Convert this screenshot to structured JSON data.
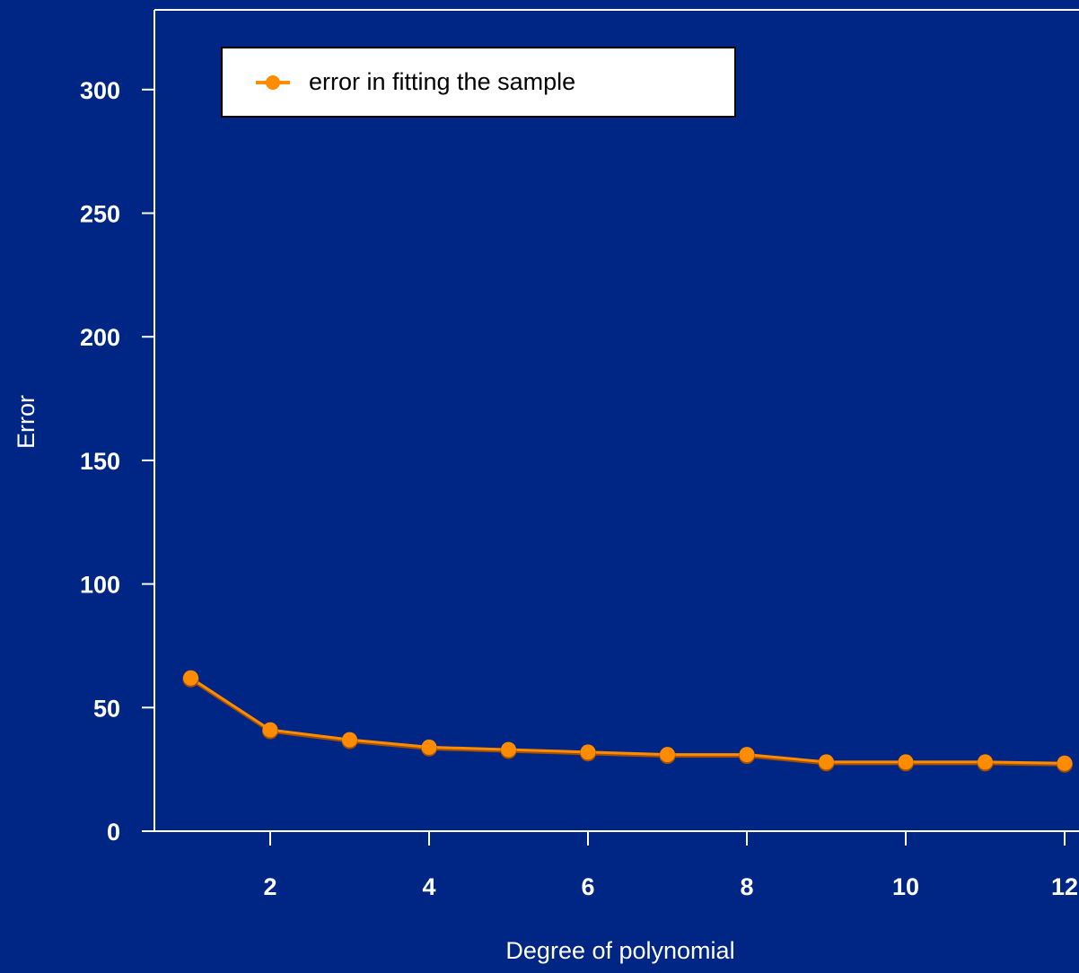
{
  "colors": {
    "background": "#002685",
    "axis": "#ffffff",
    "series": "#ff8c00",
    "series_shadow": "#a05000",
    "legend_bg": "#ffffff"
  },
  "chart_data": {
    "type": "line",
    "title": "",
    "xlabel": "Degree of polynomial",
    "ylabel": "Error",
    "xlim": [
      0.5,
      12
    ],
    "ylim": [
      0,
      330
    ],
    "x_ticks": [
      2,
      4,
      6,
      8,
      10,
      12
    ],
    "y_ticks": [
      0,
      50,
      100,
      150,
      200,
      250,
      300
    ],
    "grid": false,
    "legend_position": "top-left",
    "series": [
      {
        "name": "error in fitting the sample",
        "marker": "circle",
        "x": [
          1,
          2,
          3,
          4,
          5,
          6,
          7,
          8,
          9,
          10,
          11,
          12
        ],
        "y": [
          62,
          41,
          37,
          34,
          33,
          32,
          31,
          31,
          28,
          28,
          28,
          27.5
        ]
      }
    ]
  }
}
